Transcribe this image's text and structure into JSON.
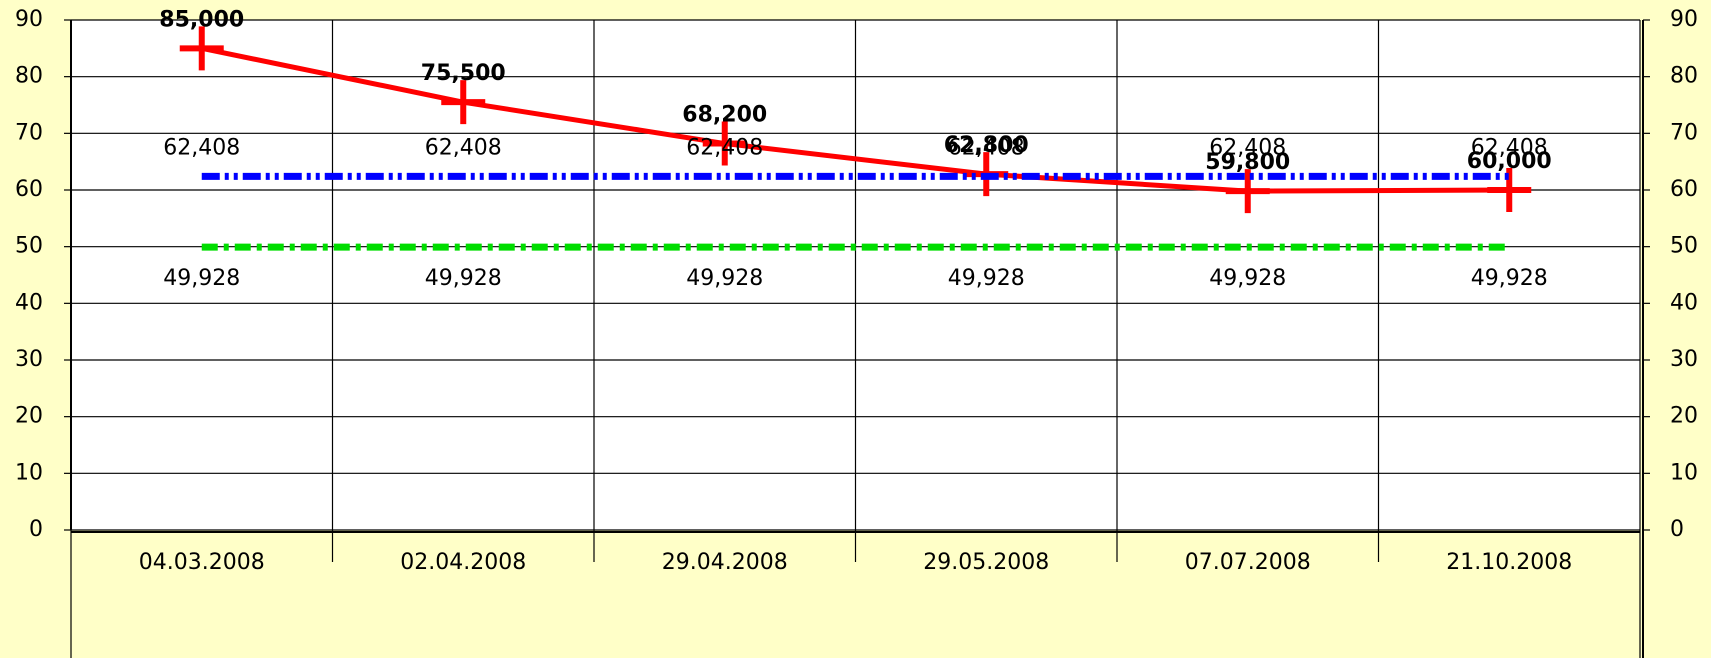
{
  "chart_data": {
    "type": "line",
    "categories": [
      "04.03.2008",
      "02.04.2008",
      "29.04.2008",
      "29.05.2008",
      "07.07.2008",
      "21.10.2008"
    ],
    "series": [
      {
        "name": null,
        "color": "#ff0000",
        "values": [
          85,
          75.5,
          68.2,
          62.8,
          59.8,
          60
        ],
        "value_labels": [
          "85,000",
          "75,500",
          "68,200",
          "62,800",
          "59,800",
          "60,000"
        ]
      },
      {
        "name": null,
        "color": "#0000ff",
        "values": [
          62.408,
          62.408,
          62.408,
          62.408,
          62.408,
          62.408
        ],
        "value_labels": [
          "62,408",
          "62,408",
          "62,408",
          "62,408",
          "62,408",
          "62,408"
        ]
      },
      {
        "name": null,
        "color": "#00dd00",
        "values": [
          49.928,
          49.928,
          49.928,
          49.928,
          49.928,
          49.928
        ],
        "value_labels": [
          "49,928",
          "49,928",
          "49,928",
          "49,928",
          "49,928",
          "49,928"
        ]
      }
    ],
    "ylim": [
      0,
      90
    ],
    "yticks": [
      0,
      10,
      20,
      30,
      40,
      50,
      60,
      70,
      80,
      90
    ],
    "y2lim": [
      0,
      90
    ],
    "y2ticks": [
      0,
      10,
      20,
      30,
      40,
      50,
      60,
      70,
      80,
      90
    ],
    "grid": true
  }
}
